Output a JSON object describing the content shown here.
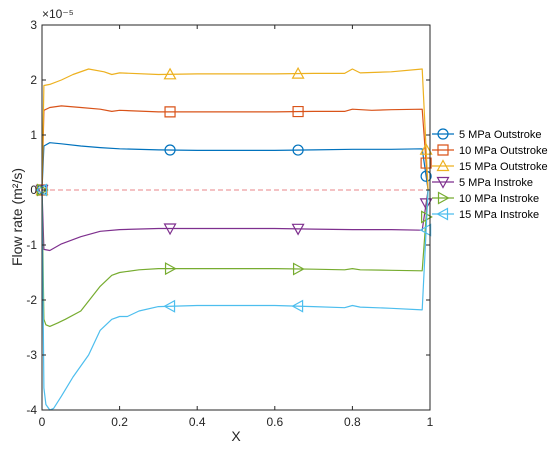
{
  "chart_data": {
    "type": "line",
    "xlabel": "X",
    "ylabel": "Flow rate (m²/s)",
    "y_exponent_label": "×10⁻⁵",
    "xlim": [
      0,
      1
    ],
    "ylim": [
      -4e-05,
      3e-05
    ],
    "x_ticks": [
      0,
      0.2,
      0.4,
      0.6,
      0.8,
      1
    ],
    "x_tick_labels": [
      "0",
      "0.2",
      "0.4",
      "0.6",
      "0.8",
      "1"
    ],
    "y_ticks": [
      -4e-05,
      -3e-05,
      -2e-05,
      -1e-05,
      0,
      1e-05,
      2e-05,
      3e-05
    ],
    "y_tick_labels": [
      "-4",
      "-3",
      "-2",
      "-1",
      "0",
      "1",
      "2",
      "3"
    ],
    "grid": false,
    "legend_position": "right",
    "reference_line": {
      "y": 0,
      "style": "dashed",
      "color": "#e8858a"
    },
    "series": [
      {
        "name": "5 MPa Outstroke",
        "color": "#0072BD",
        "marker": "circle",
        "x": [
          0,
          0.005,
          0.02,
          0.05,
          0.1,
          0.15,
          0.2,
          0.3,
          0.4,
          0.5,
          0.6,
          0.7,
          0.8,
          0.9,
          0.98,
          0.995
        ],
        "y": [
          0,
          8e-06,
          8.6e-06,
          8.4e-06,
          8e-06,
          7.7e-06,
          7.5e-06,
          7.3e-06,
          7.2e-06,
          7.2e-06,
          7.2e-06,
          7.3e-06,
          7.4e-06,
          7.4e-06,
          7.5e-06,
          0
        ],
        "marker_x": [
          0,
          0.33,
          0.66,
          0.99
        ]
      },
      {
        "name": "10 MPa Outstroke",
        "color": "#D95319",
        "marker": "square",
        "x": [
          0,
          0.005,
          0.02,
          0.05,
          0.1,
          0.15,
          0.18,
          0.2,
          0.3,
          0.4,
          0.5,
          0.6,
          0.7,
          0.78,
          0.8,
          0.85,
          0.9,
          0.98,
          0.995
        ],
        "y": [
          0,
          1.45e-05,
          1.5e-05,
          1.53e-05,
          1.5e-05,
          1.47e-05,
          1.43e-05,
          1.45e-05,
          1.42e-05,
          1.42e-05,
          1.42e-05,
          1.42e-05,
          1.43e-05,
          1.43e-05,
          1.47e-05,
          1.45e-05,
          1.46e-05,
          1.47e-05,
          0
        ],
        "marker_x": [
          0,
          0.33,
          0.66,
          0.99
        ]
      },
      {
        "name": "15 MPa Outstroke",
        "color": "#EDB120",
        "marker": "triangle-up",
        "x": [
          0,
          0.005,
          0.02,
          0.05,
          0.08,
          0.12,
          0.16,
          0.18,
          0.2,
          0.3,
          0.4,
          0.5,
          0.6,
          0.7,
          0.78,
          0.8,
          0.82,
          0.9,
          0.98,
          0.995
        ],
        "y": [
          0,
          1.9e-05,
          1.92e-05,
          2e-05,
          2.1e-05,
          2.2e-05,
          2.15e-05,
          2.1e-05,
          2.13e-05,
          2.1e-05,
          2.11e-05,
          2.11e-05,
          2.11e-05,
          2.12e-05,
          2.12e-05,
          2.2e-05,
          2.13e-05,
          2.15e-05,
          2.2e-05,
          0
        ],
        "marker_x": [
          0,
          0.33,
          0.66,
          0.99
        ]
      },
      {
        "name": "5 MPa Instroke",
        "color": "#7E2F8E",
        "marker": "triangle-down",
        "x": [
          0,
          0.005,
          0.02,
          0.05,
          0.1,
          0.15,
          0.2,
          0.3,
          0.4,
          0.5,
          0.6,
          0.7,
          0.8,
          0.9,
          0.98,
          0.995
        ],
        "y": [
          0,
          -1.08e-05,
          -1.1e-05,
          -9.8e-06,
          -8.5e-06,
          -7.5e-06,
          -7.2e-06,
          -7e-06,
          -7e-06,
          -7e-06,
          -7e-06,
          -7.1e-06,
          -7.2e-06,
          -7.2e-06,
          -7.3e-06,
          0
        ],
        "marker_x": [
          0,
          0.33,
          0.66,
          0.99
        ]
      },
      {
        "name": "10 MPa Instroke",
        "color": "#77AC30",
        "marker": "triangle-right",
        "x": [
          0,
          0.005,
          0.01,
          0.02,
          0.04,
          0.06,
          0.1,
          0.15,
          0.18,
          0.2,
          0.25,
          0.3,
          0.4,
          0.5,
          0.6,
          0.7,
          0.78,
          0.8,
          0.82,
          0.9,
          0.98,
          0.995
        ],
        "y": [
          0,
          -2.35e-05,
          -2.45e-05,
          -2.48e-05,
          -2.42e-05,
          -2.35e-05,
          -2.2e-05,
          -1.75e-05,
          -1.55e-05,
          -1.5e-05,
          -1.45e-05,
          -1.43e-05,
          -1.43e-05,
          -1.43e-05,
          -1.43e-05,
          -1.44e-05,
          -1.45e-05,
          -1.43e-05,
          -1.45e-05,
          -1.46e-05,
          -1.47e-05,
          0
        ],
        "marker_x": [
          0,
          0.33,
          0.66,
          0.99
        ]
      },
      {
        "name": "15 MPa Instroke",
        "color": "#4DBEEE",
        "marker": "triangle-left",
        "x": [
          0,
          0.005,
          0.01,
          0.02,
          0.03,
          0.05,
          0.08,
          0.12,
          0.15,
          0.18,
          0.2,
          0.22,
          0.25,
          0.3,
          0.4,
          0.5,
          0.6,
          0.7,
          0.78,
          0.8,
          0.82,
          0.9,
          0.98,
          0.995
        ],
        "y": [
          0,
          -3.6e-05,
          -3.9e-05,
          -4e-05,
          -3.97e-05,
          -3.75e-05,
          -3.4e-05,
          -3e-05,
          -2.55e-05,
          -2.35e-05,
          -2.3e-05,
          -2.3e-05,
          -2.2e-05,
          -2.12e-05,
          -2.1e-05,
          -2.1e-05,
          -2.1e-05,
          -2.12e-05,
          -2.14e-05,
          -2.1e-05,
          -2.13e-05,
          -2.15e-05,
          -2.18e-05,
          0
        ],
        "marker_x": [
          0,
          0.33,
          0.66,
          0.99
        ]
      }
    ]
  }
}
